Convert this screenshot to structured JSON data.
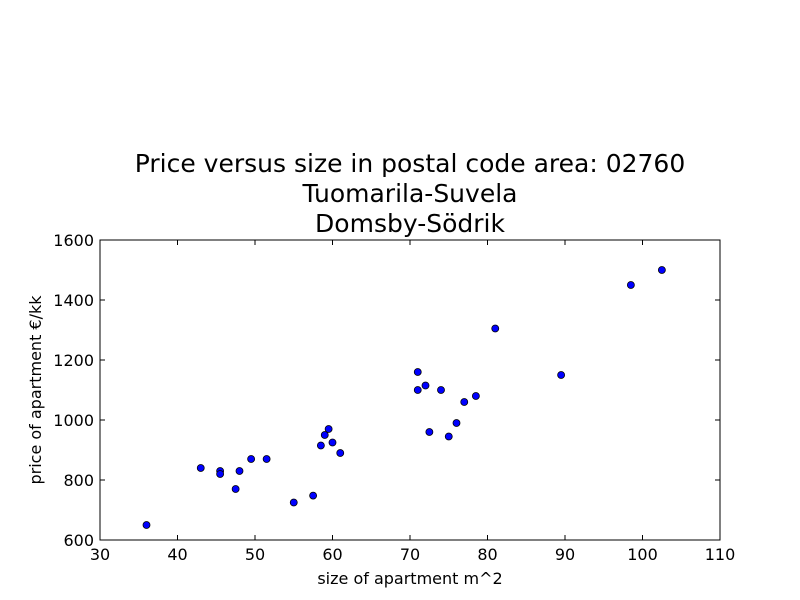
{
  "chart_data": {
    "type": "scatter",
    "title_lines": [
      "Price versus size in postal code area: 02760",
      "Tuomarila-Suvela",
      "Domsby-Södrik"
    ],
    "xlabel": "size of apartment m^2",
    "ylabel": "price of apartment €/kk",
    "xlim": [
      30,
      110
    ],
    "ylim": [
      600,
      1600
    ],
    "xticks": [
      30,
      40,
      50,
      60,
      70,
      80,
      90,
      100,
      110
    ],
    "yticks": [
      600,
      800,
      1000,
      1200,
      1400,
      1600
    ],
    "grid": false,
    "marker_color": "#0000ff",
    "points": [
      {
        "x": 36.0,
        "y": 650
      },
      {
        "x": 43.0,
        "y": 840
      },
      {
        "x": 45.5,
        "y": 830
      },
      {
        "x": 45.5,
        "y": 820
      },
      {
        "x": 47.5,
        "y": 770
      },
      {
        "x": 48.0,
        "y": 830
      },
      {
        "x": 49.5,
        "y": 870
      },
      {
        "x": 51.5,
        "y": 870
      },
      {
        "x": 55.0,
        "y": 725
      },
      {
        "x": 57.5,
        "y": 748
      },
      {
        "x": 58.5,
        "y": 915
      },
      {
        "x": 59.0,
        "y": 950
      },
      {
        "x": 59.5,
        "y": 970
      },
      {
        "x": 60.0,
        "y": 925
      },
      {
        "x": 61.0,
        "y": 890
      },
      {
        "x": 71.0,
        "y": 1160
      },
      {
        "x": 71.0,
        "y": 1100
      },
      {
        "x": 72.0,
        "y": 1115
      },
      {
        "x": 72.5,
        "y": 960
      },
      {
        "x": 74.0,
        "y": 1100
      },
      {
        "x": 75.0,
        "y": 945
      },
      {
        "x": 76.0,
        "y": 990
      },
      {
        "x": 77.0,
        "y": 1060
      },
      {
        "x": 78.5,
        "y": 1080
      },
      {
        "x": 81.0,
        "y": 1305
      },
      {
        "x": 89.5,
        "y": 1150
      },
      {
        "x": 98.5,
        "y": 1450
      },
      {
        "x": 102.5,
        "y": 1500
      }
    ]
  }
}
